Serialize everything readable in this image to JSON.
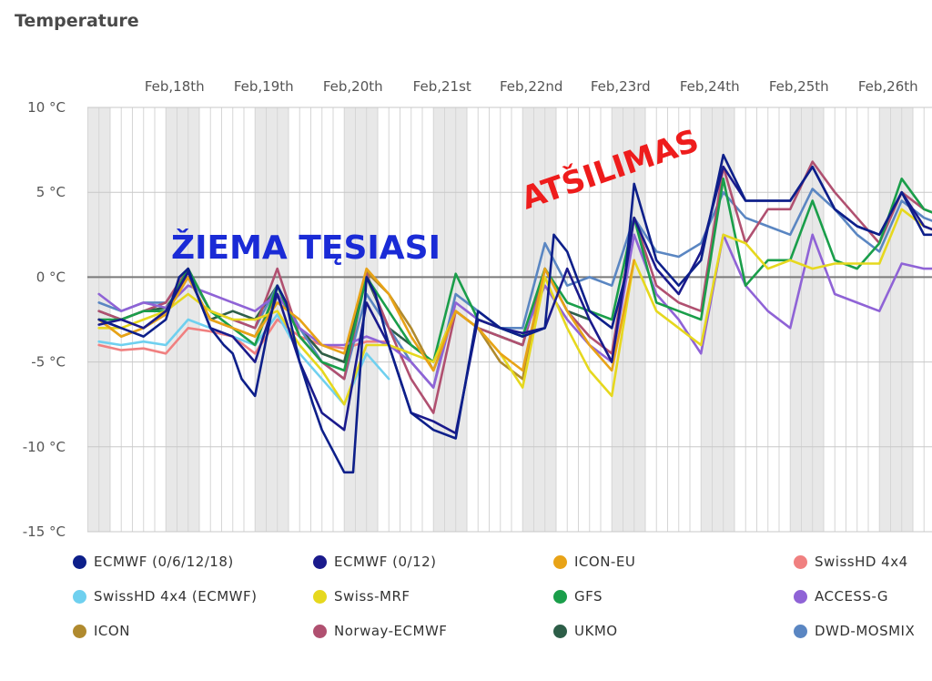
{
  "chart_data": {
    "type": "line",
    "title": "Temperature",
    "x_ticks": [
      "Feb,18th",
      "Feb,19th",
      "Feb,20th",
      "Feb,21st",
      "Feb,22nd",
      "Feb,23rd",
      "Feb,24th",
      "Feb,25th",
      "Feb,26th"
    ],
    "y_ticks": [
      "10 °C",
      "5 °C",
      "0 °C",
      "-5 °C",
      "-10 °C",
      "-15 °C"
    ],
    "ylim": [
      -15,
      10
    ],
    "xlim_days": "Feb 17 – Feb 26",
    "grid": true,
    "legend_position": "bottom",
    "annotations": [
      {
        "text": "ŽIEMA TĘSIASI",
        "color": "#1a2bd6"
      },
      {
        "text": "ATŠILIMAS",
        "color": "#ee1c1c"
      }
    ],
    "series": [
      {
        "name": "ECMWF (0/6/12/18)",
        "color": "#0d1f8a",
        "x": [
          17.0,
          17.25,
          17.5,
          17.75,
          17.9,
          18.0,
          18.1,
          18.25,
          18.4,
          18.5,
          18.6,
          18.75,
          18.9,
          19.0,
          19.1,
          19.25,
          19.4,
          19.5,
          19.6,
          19.75,
          19.85,
          20.0,
          20.1,
          20.25,
          20.5,
          20.75,
          21.0,
          21.25,
          21.5,
          21.75,
          22.0,
          22.1,
          22.25,
          22.5,
          22.75,
          22.9,
          23.0,
          23.25,
          23.5,
          23.75,
          24.0,
          24.25,
          24.5,
          24.75,
          25.0,
          25.25,
          25.5,
          25.75,
          26.0,
          26.25,
          26.5,
          26.75,
          27.0
        ],
        "y": [
          -2.5,
          -3.0,
          -3.5,
          -2.5,
          0.0,
          0.5,
          -1.0,
          -3.0,
          -4.0,
          -4.5,
          -6.0,
          -7.0,
          -3.0,
          -0.5,
          -1.5,
          -5.0,
          -7.5,
          -9.0,
          -10.0,
          -11.5,
          -11.5,
          0.0,
          -1.0,
          -4.0,
          -8.0,
          -9.0,
          -9.5,
          -2.0,
          -3.0,
          -3.5,
          -3.0,
          2.5,
          1.5,
          -2.0,
          -3.0,
          0.0,
          5.5,
          1.0,
          -0.5,
          1.0,
          7.2,
          4.5,
          4.5,
          4.5,
          6.5,
          4.0,
          3.0,
          2.5,
          5.0,
          2.5,
          2.5,
          2.5,
          2.0
        ]
      },
      {
        "name": "ECMWF (0/12)",
        "color": "#1a1a8c",
        "x": [
          17.0,
          17.25,
          17.5,
          17.75,
          18.0,
          18.25,
          18.5,
          18.75,
          19.0,
          19.25,
          19.5,
          19.75,
          20.0,
          20.25,
          20.5,
          20.75,
          21.0,
          21.25,
          21.5,
          21.75,
          22.0,
          22.25,
          22.5,
          22.75,
          23.0,
          23.25,
          23.5,
          23.75,
          24.0,
          24.25,
          24.5,
          24.75,
          25.0,
          25.25,
          25.5,
          25.75,
          26.0,
          26.25,
          26.5,
          26.75,
          27.0
        ],
        "y": [
          -2.8,
          -2.5,
          -3.0,
          -2.0,
          0.3,
          -3.0,
          -3.5,
          -5.0,
          -1.0,
          -5.0,
          -8.0,
          -9.0,
          -1.5,
          -4.0,
          -8.0,
          -8.5,
          -9.2,
          -2.5,
          -3.0,
          -3.3,
          -3.0,
          0.5,
          -2.5,
          -5.0,
          3.5,
          0.5,
          -1.0,
          1.5,
          6.5,
          4.5,
          4.5,
          4.5,
          6.5,
          4.0,
          3.0,
          2.5,
          5.0,
          3.0,
          2.5,
          2.5,
          2.0
        ]
      },
      {
        "name": "ICON-EU",
        "color": "#e8a317",
        "x": [
          17.0,
          17.25,
          17.5,
          17.75,
          18.0,
          18.25,
          18.5,
          18.75,
          19.0,
          19.25,
          19.5,
          19.75,
          20.0,
          20.25,
          20.5,
          20.75,
          21.0,
          21.25,
          21.5,
          21.75,
          22.0,
          22.25,
          22.5,
          22.75,
          23.0
        ],
        "y": [
          -2.5,
          -3.5,
          -3.0,
          -2.2,
          0.0,
          -2.5,
          -3.0,
          -3.5,
          -1.5,
          -2.5,
          -4.0,
          -4.5,
          0.5,
          -1.0,
          -3.5,
          -5.5,
          -2.0,
          -3.0,
          -4.5,
          -5.5,
          0.5,
          -2.0,
          -4.0,
          -5.5,
          1.0
        ]
      },
      {
        "name": "SwissHD 4x4",
        "color": "#f08080",
        "x": [
          17.0,
          17.25,
          17.5,
          17.75,
          18.0,
          18.25,
          18.5,
          18.75,
          19.0,
          19.25,
          19.5,
          19.75,
          20.0,
          20.25
        ],
        "y": [
          -4.0,
          -4.3,
          -4.2,
          -4.5,
          -3.0,
          -3.2,
          -3.5,
          -4.5,
          -2.5,
          -3.5,
          -4.0,
          -4.2,
          -3.8,
          -3.8
        ]
      },
      {
        "name": "SwissHD 4x4 (ECMWF)",
        "color": "#6fd0ef",
        "x": [
          17.0,
          17.25,
          17.5,
          17.75,
          18.0,
          18.25,
          18.5,
          18.75,
          19.0,
          19.25,
          19.5,
          19.75,
          20.0,
          20.25
        ],
        "y": [
          -3.8,
          -4.0,
          -3.8,
          -4.0,
          -2.5,
          -3.0,
          -3.5,
          -4.0,
          -2.2,
          -4.5,
          -6.0,
          -7.5,
          -4.5,
          -6.0
        ]
      },
      {
        "name": "Swiss-MRF",
        "color": "#e6d81e",
        "x": [
          17.0,
          17.25,
          17.5,
          17.75,
          18.0,
          18.25,
          18.5,
          18.75,
          19.0,
          19.25,
          19.5,
          19.75,
          20.0,
          20.25,
          20.5,
          20.75,
          21.0,
          21.25,
          21.5,
          21.75,
          22.0,
          22.25,
          22.5,
          22.75,
          23.0,
          23.25,
          23.5,
          23.75,
          24.0,
          24.25,
          24.5,
          24.75,
          25.0,
          25.25,
          25.5,
          25.75,
          26.0,
          26.25,
          26.5,
          26.75,
          27.0
        ],
        "y": [
          -3.0,
          -3.0,
          -2.5,
          -2.0,
          -1.0,
          -2.0,
          -2.5,
          -2.5,
          -2.0,
          -4.0,
          -5.5,
          -7.5,
          -4.0,
          -4.0,
          -4.5,
          -5.0,
          -2.0,
          -3.0,
          -4.5,
          -6.5,
          0.0,
          -3.0,
          -5.5,
          -7.0,
          1.0,
          -2.0,
          -3.0,
          -4.0,
          2.5,
          2.0,
          0.5,
          1.0,
          0.5,
          0.8,
          0.8,
          0.8,
          4.0,
          3.0,
          2.5,
          2.5,
          2.0
        ]
      },
      {
        "name": "GFS",
        "color": "#1a9e4a",
        "x": [
          17.0,
          17.25,
          17.5,
          17.75,
          18.0,
          18.25,
          18.5,
          18.75,
          19.0,
          19.25,
          19.5,
          19.75,
          20.0,
          20.25,
          20.5,
          20.75,
          21.0,
          21.25,
          21.5,
          21.75,
          22.0,
          22.25,
          22.5,
          22.75,
          23.0,
          23.25,
          23.5,
          23.75,
          24.0,
          24.25,
          24.5,
          24.75,
          25.0,
          25.25,
          25.5,
          25.75,
          26.0,
          26.25,
          26.5,
          26.75,
          27.0
        ],
        "y": [
          -2.5,
          -2.5,
          -2.0,
          -2.0,
          0.5,
          -2.0,
          -3.0,
          -4.0,
          -0.5,
          -3.5,
          -5.0,
          -5.5,
          0.0,
          -2.0,
          -4.0,
          -5.0,
          0.2,
          -2.5,
          -3.0,
          -3.5,
          0.5,
          -1.5,
          -2.0,
          -2.5,
          3.5,
          -1.5,
          -2.0,
          -2.5,
          5.8,
          -0.5,
          1.0,
          1.0,
          4.5,
          1.0,
          0.5,
          2.0,
          5.8,
          4.0,
          3.5,
          3.8,
          3.5
        ]
      },
      {
        "name": "ACCESS-G",
        "color": "#8f63d6",
        "x": [
          17.0,
          17.25,
          17.5,
          17.75,
          18.0,
          18.25,
          18.5,
          18.75,
          19.0,
          19.25,
          19.5,
          19.75,
          20.0,
          20.25,
          20.5,
          20.75,
          21.0,
          21.25,
          21.5,
          21.75,
          22.0,
          22.25,
          22.5,
          22.75,
          23.0,
          23.25,
          23.5,
          23.75,
          24.0,
          24.25,
          24.5,
          24.75,
          25.0,
          25.25,
          25.5,
          25.75,
          26.0,
          26.25,
          26.5,
          26.75,
          27.0
        ],
        "y": [
          -1.0,
          -2.0,
          -1.5,
          -1.8,
          -0.5,
          -1.0,
          -1.5,
          -2.0,
          -1.0,
          -3.0,
          -4.0,
          -4.0,
          -3.5,
          -4.0,
          -5.0,
          -6.5,
          -1.5,
          -2.5,
          -3.0,
          -3.5,
          -0.5,
          -2.5,
          -4.0,
          -5.0,
          2.5,
          -1.0,
          -2.5,
          -4.5,
          2.5,
          -0.5,
          -2.0,
          -3.0,
          2.5,
          -1.0,
          -1.5,
          -2.0,
          0.8,
          0.5,
          0.5,
          0.5,
          0.0
        ]
      },
      {
        "name": "ICON",
        "color": "#b08a2e",
        "x": [
          17.0,
          17.25,
          17.5,
          17.75,
          18.0,
          18.25,
          18.5,
          18.75,
          19.0,
          19.25,
          19.5,
          19.75,
          20.0,
          20.25,
          20.5,
          20.75,
          21.0,
          21.25,
          21.5,
          21.75,
          22.0
        ],
        "y": [
          -2.5,
          -3.5,
          -3.0,
          -2.0,
          0.0,
          -2.5,
          -3.0,
          -3.5,
          -1.0,
          -3.0,
          -4.5,
          -5.0,
          0.3,
          -1.0,
          -3.0,
          -5.5,
          -2.0,
          -3.0,
          -5.0,
          -6.0,
          0.5
        ]
      },
      {
        "name": "Norway-ECMWF",
        "color": "#b05070",
        "x": [
          17.0,
          17.25,
          17.5,
          17.75,
          18.0,
          18.25,
          18.5,
          18.75,
          19.0,
          19.25,
          19.5,
          19.75,
          20.0,
          20.25,
          20.5,
          20.75,
          21.0,
          21.25,
          21.5,
          21.75,
          22.0,
          22.25,
          22.5,
          22.75,
          23.0,
          23.25,
          23.5,
          23.75,
          24.0,
          24.25,
          24.5,
          24.75,
          25.0,
          25.25,
          25.5,
          25.75,
          26.0,
          26.25,
          26.5,
          26.75,
          27.0
        ],
        "y": [
          -2.0,
          -2.5,
          -2.0,
          -1.5,
          0.5,
          -2.0,
          -2.5,
          -3.0,
          0.5,
          -3.5,
          -5.0,
          -6.0,
          0.2,
          -3.0,
          -6.0,
          -8.0,
          -2.0,
          -3.0,
          -3.5,
          -4.0,
          0.5,
          -2.0,
          -3.5,
          -4.5,
          3.5,
          -0.5,
          -1.5,
          -2.0,
          6.5,
          2.0,
          4.0,
          4.0,
          6.8,
          5.0,
          3.5,
          2.0,
          5.0,
          4.0,
          3.5,
          2.5,
          2.0
        ]
      },
      {
        "name": "UKMO",
        "color": "#2d5e48",
        "x": [
          17.0,
          17.25,
          17.5,
          17.75,
          18.0,
          18.25,
          18.5,
          18.75,
          19.0,
          19.25,
          19.5,
          19.75,
          20.0,
          20.25,
          20.5,
          20.75,
          21.0,
          21.25,
          21.5,
          21.75,
          22.0,
          22.25,
          22.5
        ],
        "y": [
          -2.0,
          -2.5,
          -2.0,
          -1.8,
          0.0,
          -2.5,
          -2.0,
          -2.5,
          -0.5,
          -3.0,
          -4.5,
          -5.0,
          0.0,
          -3.0,
          -4.0,
          -5.0,
          -2.0,
          -3.0,
          -3.5,
          -4.0,
          0.5,
          -2.0,
          -2.5
        ]
      },
      {
        "name": "DWD-MOSMIX",
        "color": "#5a86c2",
        "x": [
          17.0,
          17.25,
          17.5,
          17.75,
          18.0,
          18.25,
          18.5,
          18.75,
          19.0,
          19.25,
          19.5,
          19.75,
          20.0,
          20.25,
          20.5,
          20.75,
          21.0,
          21.25,
          21.5,
          21.75,
          22.0,
          22.25,
          22.5,
          22.75,
          23.0,
          23.25,
          23.5,
          23.75,
          24.0,
          24.25,
          24.5,
          24.75,
          25.0,
          25.25,
          25.5,
          25.75,
          26.0,
          26.25,
          26.5,
          26.75,
          27.0
        ],
        "y": [
          -1.5,
          -2.0,
          -1.5,
          -1.5,
          0.3,
          -2.0,
          -2.5,
          -3.0,
          -0.5,
          -3.0,
          -5.0,
          -6.0,
          -1.0,
          -3.0,
          -5.0,
          -6.5,
          -1.0,
          -2.0,
          -3.0,
          -3.0,
          2.0,
          -0.5,
          0.0,
          -0.5,
          3.5,
          1.5,
          1.2,
          2.0,
          5.0,
          3.5,
          3.0,
          2.5,
          5.2,
          4.0,
          2.5,
          1.5,
          4.5,
          3.5,
          3.0,
          2.5,
          2.0
        ]
      }
    ]
  }
}
